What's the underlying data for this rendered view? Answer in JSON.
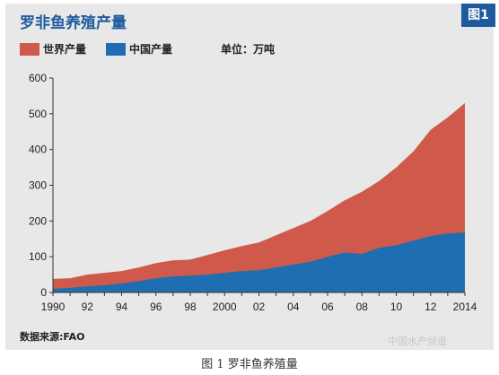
{
  "header": {
    "title": "罗非鱼养殖产量",
    "badge": "图1"
  },
  "legend": {
    "world_label": "世界产量",
    "china_label": "中国产量",
    "unit_label": "单位：万吨"
  },
  "source": "数据来源:FAO",
  "caption": "图 1 罗非鱼养殖量",
  "watermark": "中国水产频道",
  "colors": {
    "world": "#cf5a4c",
    "china": "#1f6eb1",
    "panel": "#e8e8e8",
    "title": "#1e5b9c"
  },
  "chart_data": {
    "type": "area",
    "x": [
      1990,
      1991,
      1992,
      1993,
      1994,
      1995,
      1996,
      1997,
      1998,
      1999,
      2000,
      2001,
      2002,
      2003,
      2004,
      2005,
      2006,
      2007,
      2008,
      2009,
      2010,
      2011,
      2012,
      2013,
      2014
    ],
    "xticks": [
      1990,
      1992,
      1994,
      1996,
      1998,
      2000,
      2002,
      2004,
      2006,
      2008,
      2010,
      2012,
      2014
    ],
    "xtick_labels": [
      "1990",
      "92",
      "94",
      "96",
      "98",
      "2000",
      "02",
      "04",
      "06",
      "08",
      "10",
      "12",
      "2014"
    ],
    "ylim": [
      0,
      600
    ],
    "yticks": [
      0,
      100,
      200,
      300,
      400,
      500,
      600
    ],
    "series": [
      {
        "name": "世界产量",
        "color": "#cf5a4c",
        "values": [
          38,
          40,
          50,
          55,
          60,
          70,
          82,
          90,
          92,
          105,
          118,
          130,
          140,
          160,
          180,
          200,
          228,
          258,
          282,
          312,
          350,
          395,
          455,
          490,
          530
        ]
      },
      {
        "name": "中国产量",
        "color": "#1f6eb1",
        "values": [
          10,
          13,
          17,
          20,
          25,
          32,
          40,
          45,
          47,
          50,
          55,
          60,
          62,
          70,
          78,
          86,
          100,
          112,
          108,
          125,
          132,
          145,
          158,
          165,
          168
        ]
      }
    ],
    "grid": false
  }
}
